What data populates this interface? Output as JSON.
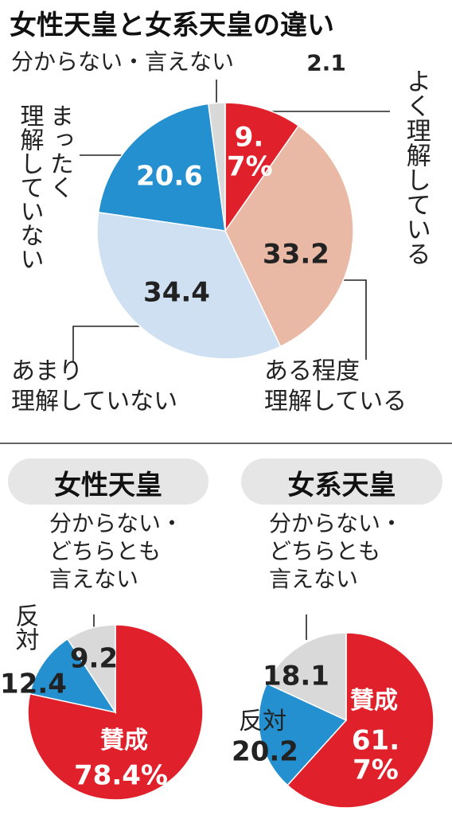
{
  "chart_data": [
    {
      "type": "pie",
      "title": "女性天皇と女系天皇の違い",
      "categories": [
        "よく理解している",
        "ある程度\n理解している",
        "あまり\n理解していない",
        "まったく\n理解していない",
        "分からない・言えない"
      ],
      "values": [
        9.7,
        33.2,
        34.4,
        20.6,
        2.1
      ],
      "value_labels": [
        "9.7%",
        "33.2",
        "34.4",
        "20.6",
        "2.1"
      ],
      "colors": [
        "#e0202a",
        "#e9b9a6",
        "#cfe0f2",
        "#2590cf",
        "#d9d9d9"
      ]
    },
    {
      "type": "pie",
      "title": "女性天皇",
      "categories": [
        "賛成",
        "反対",
        "分からない・\nどちらとも\n言えない"
      ],
      "values": [
        78.4,
        12.4,
        9.2
      ],
      "value_labels": [
        "78.4%",
        "12.4",
        "9.2"
      ],
      "colors": [
        "#e0202a",
        "#2590cf",
        "#d9d9d9"
      ]
    },
    {
      "type": "pie",
      "title": "女系天皇",
      "categories": [
        "賛成",
        "反対",
        "分からない・\nどちらとも\n言えない"
      ],
      "values": [
        61.7,
        20.2,
        18.1
      ],
      "value_labels": [
        "61.7%",
        "20.2",
        "18.1"
      ],
      "colors": [
        "#e0202a",
        "#2590cf",
        "#d9d9d9"
      ]
    }
  ]
}
